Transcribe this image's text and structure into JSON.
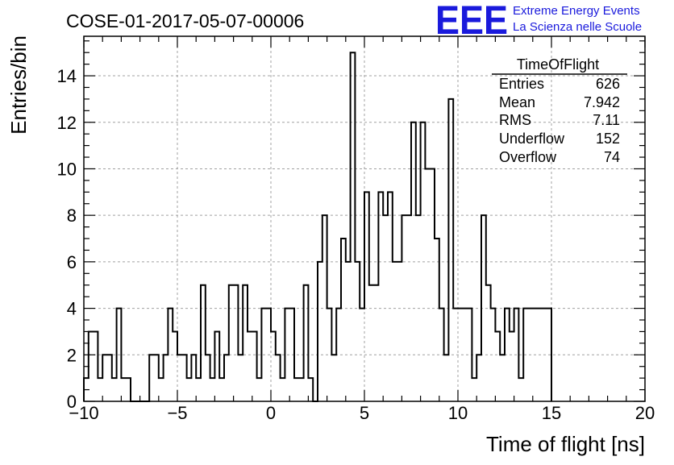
{
  "header": {
    "title": "COSE-01-2017-05-07-00006",
    "logo_text": "EEE",
    "logo_line1": "Extreme Energy Events",
    "logo_line2": "La Scienza nelle Scuole",
    "logo_color": "#1a1adc"
  },
  "stats": {
    "title": "TimeOfFlight",
    "rows": [
      {
        "label": "Entries",
        "value": "626"
      },
      {
        "label": "Mean",
        "value": "7.942"
      },
      {
        "label": "RMS",
        "value": "7.11"
      },
      {
        "label": "Underflow",
        "value": "152"
      },
      {
        "label": "Overflow",
        "value": "74"
      }
    ]
  },
  "chart_data": {
    "type": "histogram",
    "title": "COSE-01-2017-05-07-00006",
    "xlabel": "Time of flight [ns]",
    "ylabel": "Entries/bin",
    "xlim": [
      -10,
      20
    ],
    "ylim": [
      0,
      15.7
    ],
    "xticks": [
      -10,
      -5,
      0,
      5,
      10,
      15,
      20
    ],
    "yticks": [
      0,
      2,
      4,
      6,
      8,
      10,
      12,
      14
    ],
    "grid": true,
    "bin_width": 0.25,
    "bins_from": -10,
    "values": [
      1,
      3,
      3,
      1,
      2,
      2,
      1,
      4,
      1,
      1,
      0,
      0,
      0,
      0,
      2,
      2,
      1,
      2,
      4,
      3,
      2,
      2,
      1,
      2,
      1,
      5,
      2,
      1,
      3,
      1,
      2,
      5,
      5,
      2,
      5,
      3,
      3,
      1,
      4,
      4,
      3,
      2,
      1,
      4,
      4,
      1,
      1,
      5,
      1,
      0,
      6,
      8,
      4,
      2,
      4,
      7,
      6,
      15,
      6,
      4,
      9,
      5,
      5,
      9,
      8,
      9,
      6,
      6,
      8,
      8,
      12,
      8,
      12,
      10,
      10,
      7,
      4,
      2,
      13,
      4,
      4,
      4,
      4,
      1,
      2,
      8,
      5,
      4,
      3,
      2,
      4,
      3,
      4,
      1,
      4,
      4,
      4,
      4,
      4,
      4
    ],
    "series_color": "#000000"
  }
}
